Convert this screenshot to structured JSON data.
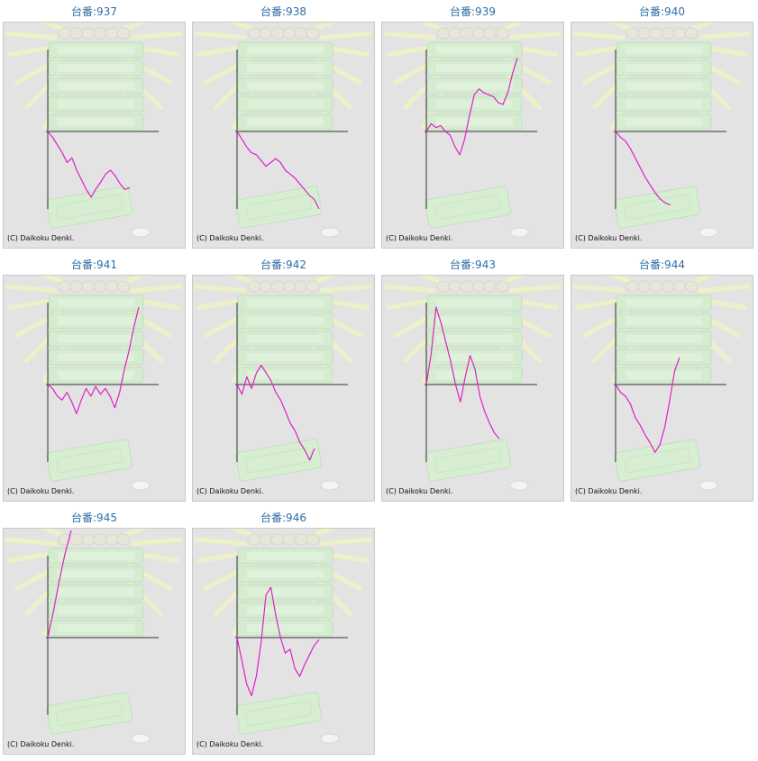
{
  "machines": [
    {
      "label": "台番:937",
      "copyright": "(C) Daikoku Denki.",
      "chart_data": {
        "type": "line",
        "series": [
          {
            "values": [
              0,
              -15,
              -35,
              -55,
              -80,
              -68,
              -100,
              -125,
              -150,
              -170,
              -148,
              -130,
              -110,
              -100,
              -115,
              -135,
              -150,
              -145
            ]
          }
        ]
      }
    },
    {
      "label": "台番:938",
      "copyright": "(C) Daikoku Denki.",
      "chart_data": {
        "type": "line",
        "series": [
          {
            "values": [
              0,
              -20,
              -40,
              -55,
              -60,
              -75,
              -90,
              -80,
              -70,
              -80,
              -100,
              -110,
              -120,
              -135,
              -150,
              -165,
              -175,
              -200
            ]
          }
        ]
      }
    },
    {
      "label": "台番:939",
      "copyright": "(C) Daikoku Denki.",
      "chart_data": {
        "type": "line",
        "series": [
          {
            "values": [
              0,
              20,
              10,
              15,
              0,
              -10,
              -40,
              -60,
              -20,
              40,
              95,
              110,
              100,
              95,
              90,
              75,
              70,
              100,
              150,
              190
            ]
          }
        ]
      }
    },
    {
      "label": "台番:940",
      "copyright": "(C) Daikoku Denki.",
      "chart_data": {
        "type": "line",
        "series": [
          {
            "values": [
              0,
              -15,
              -25,
              -45,
              -70,
              -95,
              -120,
              -140,
              -160,
              -175,
              -185,
              -190
            ]
          }
        ]
      }
    },
    {
      "label": "台番:941",
      "copyright": "(C) Daikoku Denki.",
      "chart_data": {
        "type": "line",
        "series": [
          {
            "values": [
              0,
              -10,
              -30,
              -40,
              -20,
              -45,
              -75,
              -40,
              -10,
              -30,
              -5,
              -25,
              -10,
              -30,
              -60,
              -20,
              40,
              90,
              150,
              200
            ]
          }
        ]
      }
    },
    {
      "label": "台番:942",
      "copyright": "(C) Daikoku Denki.",
      "chart_data": {
        "type": "line",
        "series": [
          {
            "values": [
              0,
              -25,
              20,
              -10,
              30,
              50,
              30,
              10,
              -20,
              -40,
              -70,
              -100,
              -120,
              -150,
              -170,
              -195,
              -165
            ]
          }
        ]
      }
    },
    {
      "label": "台番:943",
      "copyright": "(C) Daikoku Denki.",
      "chart_data": {
        "type": "line",
        "series": [
          {
            "values": [
              0,
              80,
              200,
              160,
              110,
              60,
              0,
              -45,
              20,
              75,
              40,
              -30,
              -70,
              -100,
              -125,
              -140
            ]
          }
        ]
      }
    },
    {
      "label": "台番:944",
      "copyright": "(C) Daikoku Denki.",
      "chart_data": {
        "type": "line",
        "series": [
          {
            "values": [
              0,
              -20,
              -30,
              -50,
              -85,
              -105,
              -130,
              -150,
              -175,
              -155,
              -110,
              -40,
              35,
              70
            ]
          }
        ]
      }
    },
    {
      "label": "台番:945",
      "copyright": "(C) Daikoku Denki.",
      "chart_data": {
        "type": "line",
        "series": [
          {
            "values": [
              0,
              70,
              150,
              220,
              280
            ]
          }
        ]
      }
    },
    {
      "label": "台番:946",
      "copyright": "(C) Daikoku Denki.",
      "chart_data": {
        "type": "line",
        "series": [
          {
            "values": [
              0,
              -60,
              -120,
              -150,
              -100,
              -10,
              110,
              130,
              60,
              0,
              -40,
              -30,
              -80,
              -100,
              -70,
              -45,
              -20,
              -5
            ]
          }
        ]
      }
    }
  ],
  "style": {
    "line_color": "#e020c8",
    "axis_color": "#333333",
    "title_color": "#2f6ea5",
    "panel_bg": "#e3e3e3"
  },
  "icons": {
    "background": "daikoku-machine-logo-graphic"
  }
}
